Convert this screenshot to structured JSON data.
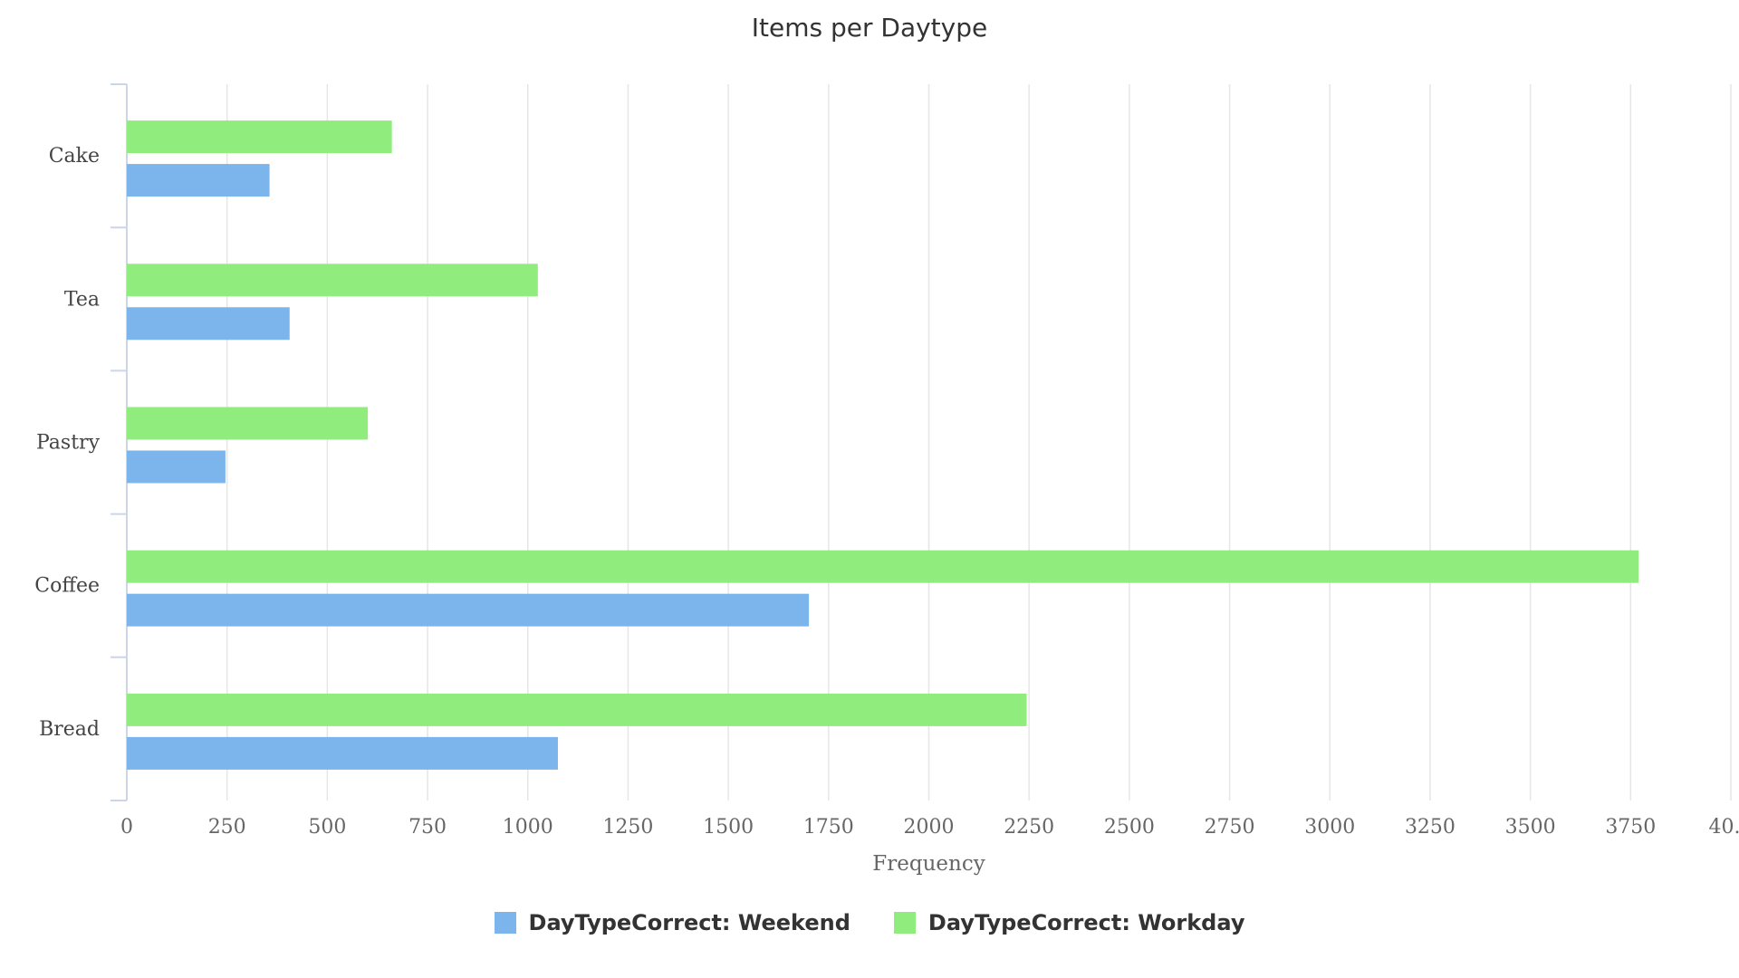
{
  "chart_data": {
    "type": "bar",
    "orientation": "horizontal",
    "title": "Items per Daytype",
    "xlabel": "Frequency",
    "ylabel": "",
    "categories": [
      "Cake",
      "Tea",
      "Pastry",
      "Coffee",
      "Bread"
    ],
    "series": [
      {
        "name": "DayTypeCorrect: Weekend",
        "color": "#7cb5ec",
        "values": [
          356,
          406,
          246,
          1701,
          1075
        ]
      },
      {
        "name": "DayTypeCorrect: Workday",
        "color": "#90ed7d",
        "values": [
          661,
          1025,
          601,
          3770,
          2244
        ]
      }
    ],
    "xlim": [
      0,
      4000
    ],
    "xticks": [
      "0",
      "250",
      "500",
      "750",
      "1000",
      "1250",
      "1500",
      "1750",
      "2000",
      "2250",
      "2500",
      "2750",
      "3000",
      "3250",
      "3500",
      "3750",
      "40..."
    ],
    "grid": true,
    "legend": "bottom-center"
  }
}
